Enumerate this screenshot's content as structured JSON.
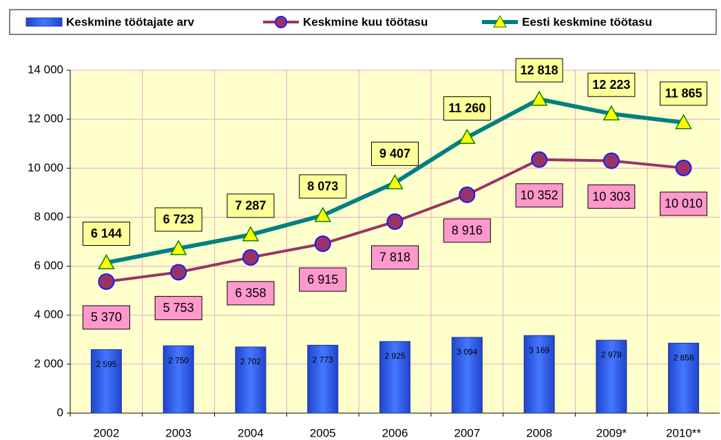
{
  "chart_data": {
    "type": "bar",
    "categories": [
      "2002",
      "2003",
      "2004",
      "2005",
      "2006",
      "2007",
      "2008",
      "2009*",
      "2010**"
    ],
    "series": [
      {
        "name": "Keskmine töötajate arv",
        "type": "bar",
        "color": "#3366ff",
        "values": [
          2595,
          2750,
          2702,
          2773,
          2925,
          3094,
          3169,
          2978,
          2858
        ],
        "value_labels": [
          "2 595",
          "2 750",
          "2 702",
          "2 773",
          "2 925",
          "3 094",
          "3 169",
          "2 978",
          "2 858"
        ]
      },
      {
        "name": "Keskmine kuu töötasu",
        "type": "line",
        "color": "#993366",
        "marker": "circle",
        "label_color": "#ff99cc",
        "values": [
          5370,
          5753,
          6358,
          6915,
          7818,
          8916,
          10352,
          10303,
          10010
        ],
        "value_labels": [
          "5 370",
          "5 753",
          "6 358",
          "6 915",
          "7 818",
          "8 916",
          "10 352",
          "10 303",
          "10 010"
        ]
      },
      {
        "name": "Eesti keskmine töötasu",
        "type": "line",
        "color": "#008080",
        "marker": "triangle",
        "label_color": "#ffff99",
        "values": [
          6144,
          6723,
          7287,
          8073,
          9407,
          11260,
          12818,
          12223,
          11865
        ],
        "value_labels": [
          "6 144",
          "6 723",
          "7 287",
          "8 073",
          "9 407",
          "11 260",
          "12 818",
          "12 223",
          "11 865"
        ]
      }
    ],
    "ylim": [
      0,
      14000
    ],
    "yticks": [
      0,
      {
        "value": 2000,
        "label": "2 000"
      },
      {
        "value": 4000,
        "label": "4 000"
      },
      {
        "value": 6000,
        "label": "6 000"
      },
      {
        "value": 8000,
        "label": "8 000"
      },
      {
        "value": 10000,
        "label": "10 000"
      },
      {
        "value": 12000,
        "label": "12 000"
      },
      {
        "value": 14000,
        "label": "14 000"
      }
    ],
    "grid": true,
    "legend": "top"
  }
}
